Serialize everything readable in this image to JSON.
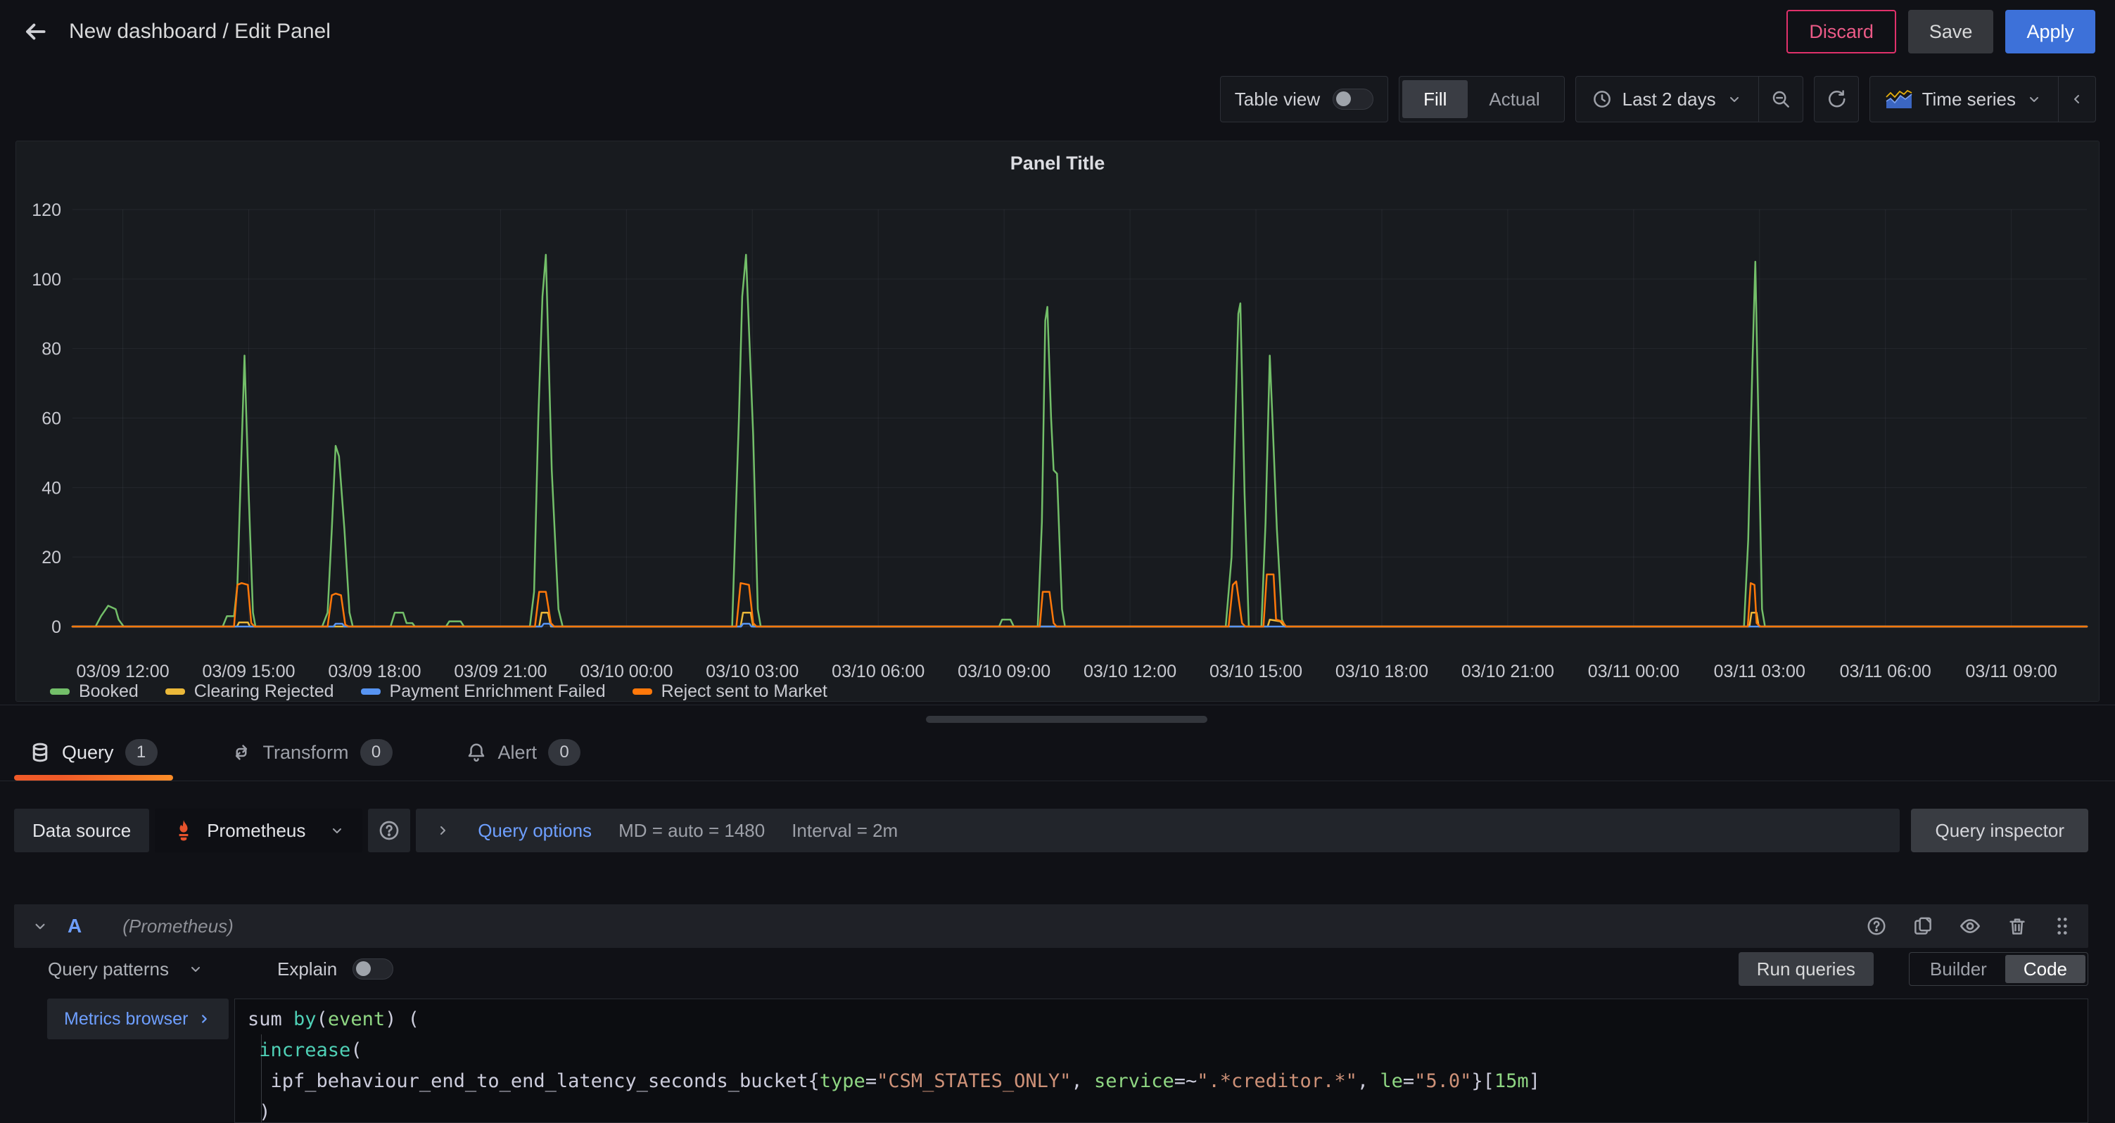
{
  "header": {
    "title": "New dashboard / Edit Panel",
    "discard": "Discard",
    "save": "Save",
    "apply": "Apply"
  },
  "toolbar": {
    "table_view_label": "Table view",
    "fill_label": "Fill",
    "actual_label": "Actual",
    "time_range_label": "Last 2 days",
    "viz_label": "Time series"
  },
  "panel": {
    "title": "Panel Title"
  },
  "chart_data": {
    "type": "line",
    "title": "Panel Title",
    "xlabel": "",
    "ylabel": "",
    "ylim": [
      0,
      120
    ],
    "grid": true,
    "legend_position": "bottom",
    "x_unit": "hours_from_chart_start",
    "x_range_hours": [
      0,
      48
    ],
    "y_ticks": [
      0,
      20,
      40,
      60,
      80,
      100,
      120
    ],
    "x_ticks": [
      {
        "h": 1.2,
        "label": "03/09 12:00"
      },
      {
        "h": 4.2,
        "label": "03/09 15:00"
      },
      {
        "h": 7.2,
        "label": "03/09 18:00"
      },
      {
        "h": 10.2,
        "label": "03/09 21:00"
      },
      {
        "h": 13.2,
        "label": "03/10 00:00"
      },
      {
        "h": 16.2,
        "label": "03/10 03:00"
      },
      {
        "h": 19.2,
        "label": "03/10 06:00"
      },
      {
        "h": 22.2,
        "label": "03/10 09:00"
      },
      {
        "h": 25.2,
        "label": "03/10 12:00"
      },
      {
        "h": 28.2,
        "label": "03/10 15:00"
      },
      {
        "h": 31.2,
        "label": "03/10 18:00"
      },
      {
        "h": 34.2,
        "label": "03/10 21:00"
      },
      {
        "h": 37.2,
        "label": "03/11 00:00"
      },
      {
        "h": 40.2,
        "label": "03/11 03:00"
      },
      {
        "h": 43.2,
        "label": "03/11 06:00"
      },
      {
        "h": 46.2,
        "label": "03/11 09:00"
      }
    ],
    "series": [
      {
        "name": "Booked",
        "color": "#73BF69",
        "points": [
          [
            0,
            0
          ],
          [
            0.55,
            0
          ],
          [
            0.68,
            3
          ],
          [
            0.85,
            6
          ],
          [
            1.03,
            5
          ],
          [
            1.1,
            2
          ],
          [
            1.22,
            0
          ],
          [
            3.58,
            0
          ],
          [
            3.68,
            3
          ],
          [
            3.85,
            3
          ],
          [
            3.93,
            12
          ],
          [
            4.1,
            78
          ],
          [
            4.2,
            38
          ],
          [
            4.3,
            4
          ],
          [
            4.36,
            0
          ],
          [
            5.95,
            0
          ],
          [
            6.08,
            4
          ],
          [
            6.18,
            28
          ],
          [
            6.27,
            52
          ],
          [
            6.35,
            49
          ],
          [
            6.48,
            28
          ],
          [
            6.6,
            4
          ],
          [
            6.68,
            0
          ],
          [
            7.58,
            0
          ],
          [
            7.68,
            4
          ],
          [
            7.88,
            4
          ],
          [
            7.96,
            1
          ],
          [
            8.1,
            1
          ],
          [
            8.16,
            0
          ],
          [
            8.9,
            0
          ],
          [
            8.98,
            1.5
          ],
          [
            9.25,
            1.5
          ],
          [
            9.33,
            0
          ],
          [
            10.9,
            0
          ],
          [
            11.0,
            10
          ],
          [
            11.1,
            60
          ],
          [
            11.2,
            95
          ],
          [
            11.28,
            107
          ],
          [
            11.42,
            45
          ],
          [
            11.58,
            5
          ],
          [
            11.68,
            0
          ],
          [
            15.72,
            0
          ],
          [
            15.88,
            60
          ],
          [
            15.96,
            95
          ],
          [
            16.05,
            107
          ],
          [
            16.22,
            55
          ],
          [
            16.33,
            5
          ],
          [
            16.4,
            0
          ],
          [
            22.08,
            0
          ],
          [
            22.15,
            2
          ],
          [
            22.35,
            2
          ],
          [
            22.43,
            0
          ],
          [
            23.0,
            0
          ],
          [
            23.1,
            30
          ],
          [
            23.18,
            88
          ],
          [
            23.23,
            92
          ],
          [
            23.32,
            60
          ],
          [
            23.38,
            45
          ],
          [
            23.46,
            44
          ],
          [
            23.58,
            5
          ],
          [
            23.65,
            0
          ],
          [
            27.48,
            0
          ],
          [
            27.62,
            20
          ],
          [
            27.78,
            90
          ],
          [
            27.83,
            93
          ],
          [
            27.93,
            38
          ],
          [
            28.03,
            0
          ],
          [
            28.33,
            0
          ],
          [
            28.43,
            30
          ],
          [
            28.53,
            78
          ],
          [
            28.6,
            58
          ],
          [
            28.7,
            28
          ],
          [
            28.82,
            2
          ],
          [
            28.9,
            0
          ],
          [
            39.83,
            0
          ],
          [
            39.93,
            25
          ],
          [
            40.03,
            75
          ],
          [
            40.1,
            105
          ],
          [
            40.18,
            55
          ],
          [
            40.26,
            5
          ],
          [
            40.33,
            0
          ],
          [
            48,
            0
          ]
        ]
      },
      {
        "name": "Clearing Rejected",
        "color": "#EAB839",
        "points": [
          [
            0,
            0
          ],
          [
            3.92,
            0
          ],
          [
            3.97,
            1.2
          ],
          [
            4.18,
            1.2
          ],
          [
            4.23,
            0
          ],
          [
            11.12,
            0
          ],
          [
            11.18,
            4
          ],
          [
            11.33,
            4
          ],
          [
            11.4,
            0
          ],
          [
            15.92,
            0
          ],
          [
            15.98,
            4
          ],
          [
            16.16,
            4
          ],
          [
            16.22,
            0
          ],
          [
            28.48,
            0
          ],
          [
            28.53,
            2
          ],
          [
            28.78,
            1.5
          ],
          [
            28.88,
            0
          ],
          [
            39.96,
            0
          ],
          [
            40.01,
            4
          ],
          [
            40.13,
            4
          ],
          [
            40.18,
            0
          ],
          [
            48,
            0
          ]
        ]
      },
      {
        "name": "Payment Enrichment Failed",
        "color": "#5794F2",
        "points": [
          [
            0,
            0
          ],
          [
            6.22,
            0
          ],
          [
            6.27,
            0.8
          ],
          [
            6.43,
            0.8
          ],
          [
            6.48,
            0
          ],
          [
            11.18,
            0
          ],
          [
            11.23,
            0.8
          ],
          [
            11.36,
            0.8
          ],
          [
            11.43,
            0
          ],
          [
            15.93,
            0
          ],
          [
            15.98,
            0.8
          ],
          [
            16.13,
            0.8
          ],
          [
            16.18,
            0
          ],
          [
            48,
            0
          ]
        ]
      },
      {
        "name": "Reject sent to Market",
        "color": "#FF780A",
        "points": [
          [
            0,
            0
          ],
          [
            3.85,
            0
          ],
          [
            3.93,
            12
          ],
          [
            4.03,
            12.5
          ],
          [
            4.18,
            12
          ],
          [
            4.26,
            1
          ],
          [
            4.34,
            0
          ],
          [
            6.08,
            0
          ],
          [
            6.18,
            9
          ],
          [
            6.27,
            9.5
          ],
          [
            6.4,
            9
          ],
          [
            6.5,
            0.5
          ],
          [
            6.58,
            0
          ],
          [
            11.02,
            0
          ],
          [
            11.12,
            10
          ],
          [
            11.28,
            10
          ],
          [
            11.4,
            1
          ],
          [
            11.48,
            0
          ],
          [
            15.82,
            0
          ],
          [
            15.92,
            12.5
          ],
          [
            16.12,
            12
          ],
          [
            16.22,
            1
          ],
          [
            16.3,
            0
          ],
          [
            23.05,
            0
          ],
          [
            23.12,
            10
          ],
          [
            23.28,
            10
          ],
          [
            23.38,
            1
          ],
          [
            23.45,
            0
          ],
          [
            27.55,
            0
          ],
          [
            27.65,
            12
          ],
          [
            27.73,
            13
          ],
          [
            27.87,
            1
          ],
          [
            27.95,
            0
          ],
          [
            28.38,
            0
          ],
          [
            28.46,
            15
          ],
          [
            28.62,
            15
          ],
          [
            28.68,
            2
          ],
          [
            28.82,
            1.5
          ],
          [
            28.92,
            0
          ],
          [
            39.92,
            0
          ],
          [
            39.99,
            12.5
          ],
          [
            40.08,
            12
          ],
          [
            40.13,
            1
          ],
          [
            40.22,
            0
          ],
          [
            48,
            0
          ]
        ]
      }
    ]
  },
  "tabs": {
    "query_label": "Query",
    "query_count": "1",
    "transform_label": "Transform",
    "transform_count": "0",
    "alert_label": "Alert",
    "alert_count": "0"
  },
  "datasource_row": {
    "label": "Data source",
    "name": "Prometheus",
    "query_options": "Query options",
    "md": "MD = auto = 1480",
    "interval": "Interval = 2m",
    "inspector": "Query inspector"
  },
  "query_row": {
    "ref": "A",
    "datasource": "(Prometheus)"
  },
  "query_toolbar": {
    "patterns": "Query patterns",
    "explain": "Explain",
    "run": "Run queries",
    "builder": "Builder",
    "code": "Code"
  },
  "editor": {
    "metrics_browser": "Metrics browser",
    "lines": [
      [
        [
          "sum ",
          "p"
        ],
        [
          "by",
          "f"
        ],
        [
          "(",
          "p"
        ],
        [
          "event",
          "l"
        ],
        [
          ") (",
          "p"
        ]
      ],
      [
        [
          " ",
          "p"
        ],
        [
          "increase",
          "f"
        ],
        [
          "(",
          "p"
        ]
      ],
      [
        [
          "  ipf_behaviour_end_to_end_latency_seconds_bucket{",
          "p"
        ],
        [
          "type",
          "l"
        ],
        [
          "=",
          "p"
        ],
        [
          "\"CSM_STATES_ONLY\"",
          "s"
        ],
        [
          ", ",
          "p"
        ],
        [
          "service",
          "l"
        ],
        [
          "=~",
          "p"
        ],
        [
          "\".*creditor.*\"",
          "s"
        ],
        [
          ", ",
          "p"
        ],
        [
          "le",
          "l"
        ],
        [
          "=",
          "p"
        ],
        [
          "\"5.0\"",
          "s"
        ],
        [
          "}[",
          "p"
        ],
        [
          "15m",
          "l"
        ],
        [
          "]",
          "p"
        ]
      ],
      [
        [
          " )",
          "p"
        ]
      ]
    ]
  },
  "colors": {
    "accent_blue": "#3d71d9",
    "link_blue": "#6e9fff",
    "destructive_pink": "#e0316b",
    "tab_underline_orange": "#f05a28",
    "prometheus_orange": "#e6522c"
  }
}
